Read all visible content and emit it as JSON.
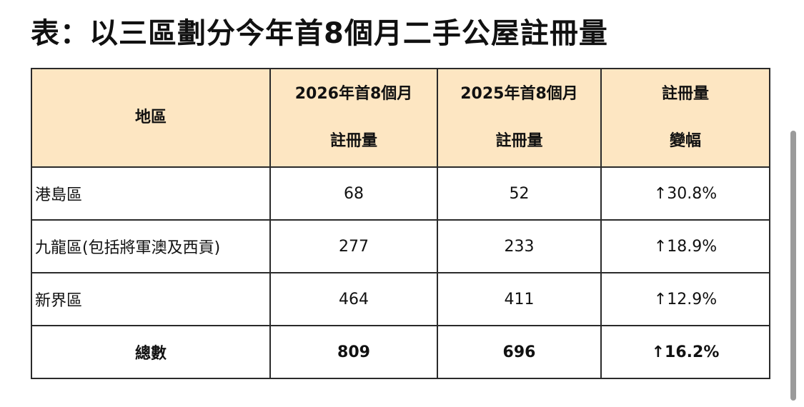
{
  "title": "表：以三區劃分今年首8個月二手公屋註冊量",
  "table": {
    "header": [
      [
        "地區"
      ],
      [
        "2026年首8個月",
        "註冊量"
      ],
      [
        "2025年首8個月",
        "註冊量"
      ],
      [
        "註冊量",
        "變幅"
      ]
    ],
    "rows": [
      [
        "港島區",
        "68",
        "52",
        "↑30.8%"
      ],
      [
        "九龍區(包括將軍澳及西貢)",
        "277",
        "233",
        "↑18.9%"
      ],
      [
        "新界區",
        "464",
        "411",
        "↑12.9%"
      ]
    ],
    "total": [
      "總數",
      "809",
      "696",
      "↑16.2%"
    ]
  }
}
